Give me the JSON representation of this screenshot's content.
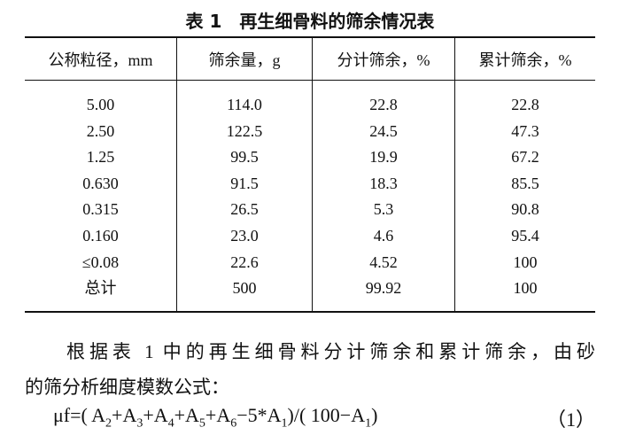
{
  "caption": "表 1　再生细骨料的筛余情况表",
  "table": {
    "header": [
      "公称粒径，mm",
      "筛余量，g",
      "分计筛余，%",
      "累计筛余，%"
    ],
    "rows": [
      [
        "5.00",
        "114.0",
        "22.8",
        "22.8"
      ],
      [
        "2.50",
        "122.5",
        "24.5",
        "47.3"
      ],
      [
        "1.25",
        "99.5",
        "19.9",
        "67.2"
      ],
      [
        "0.630",
        "91.5",
        "18.3",
        "85.5"
      ],
      [
        "0.315",
        "26.5",
        "5.3",
        "90.8"
      ],
      [
        "0.160",
        "23.0",
        "4.6",
        "95.4"
      ],
      [
        "≤0.08",
        "22.6",
        "4.52",
        "100"
      ],
      [
        "总计",
        "500",
        "99.92",
        "100"
      ]
    ]
  },
  "paragraph": [
    "根据表 1 中的再生细骨料分计筛余和累计筛余，由砂",
    "的筛分析细度模数公式："
  ],
  "formula": {
    "parts": [
      {
        "text": "μf=( A"
      },
      {
        "sub": "2"
      },
      {
        "text": "+A"
      },
      {
        "sub": "3"
      },
      {
        "text": "+A"
      },
      {
        "sub": "4"
      },
      {
        "text": "+A"
      },
      {
        "sub": "5"
      },
      {
        "text": "+A"
      },
      {
        "sub": "6"
      },
      {
        "text": "−5*A"
      },
      {
        "sub": "1"
      },
      {
        "text": ")/( 100−A"
      },
      {
        "sub": "1"
      },
      {
        "text": ")"
      }
    ],
    "number": "（1）"
  }
}
